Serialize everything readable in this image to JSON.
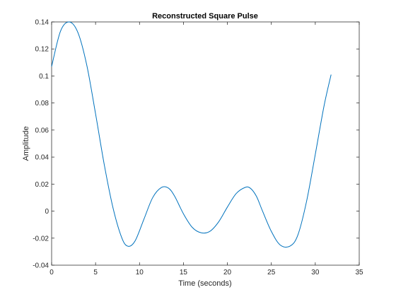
{
  "chart_data": {
    "type": "line",
    "title": "Reconstructed Square Pulse",
    "xlabel": "Time (seconds)",
    "ylabel": "Amplitude",
    "xlim": [
      0,
      35
    ],
    "ylim": [
      -0.04,
      0.14
    ],
    "xticks": [
      0,
      5,
      10,
      15,
      20,
      25,
      30,
      35
    ],
    "yticks": [
      -0.04,
      -0.02,
      0,
      0.02,
      0.04,
      0.06,
      0.08,
      0.1,
      0.12,
      0.14
    ],
    "xtick_labels": [
      "0",
      "5",
      "10",
      "15",
      "20",
      "25",
      "30",
      "35"
    ],
    "ytick_labels": [
      "-0.04",
      "-0.02",
      "0",
      "0.02",
      "0.04",
      "0.06",
      "0.08",
      "0.1",
      "0.12",
      "0.14"
    ],
    "grid": false,
    "line_color": "#0072BD",
    "series": [
      {
        "x": [
          0,
          1,
          2,
          3,
          4,
          5,
          6,
          7,
          8,
          8.7,
          9.5,
          10.5,
          11.5,
          12.5,
          13.3,
          14,
          15,
          16,
          17,
          18,
          19,
          20,
          21,
          22,
          22.6,
          23.3,
          24,
          25,
          26,
          27.1,
          28,
          29,
          30,
          31,
          31.8
        ],
        "y": [
          0.107,
          0.133,
          0.14,
          0.132,
          0.108,
          0.072,
          0.034,
          0.002,
          -0.02,
          -0.026,
          -0.022,
          -0.006,
          0.01,
          0.0175,
          0.017,
          0.011,
          -0.002,
          -0.012,
          -0.016,
          -0.015,
          -0.008,
          0.003,
          0.013,
          0.0175,
          0.017,
          0.011,
          0.0,
          -0.015,
          -0.025,
          -0.026,
          -0.018,
          0.007,
          0.042,
          0.078,
          0.101
        ]
      }
    ]
  }
}
